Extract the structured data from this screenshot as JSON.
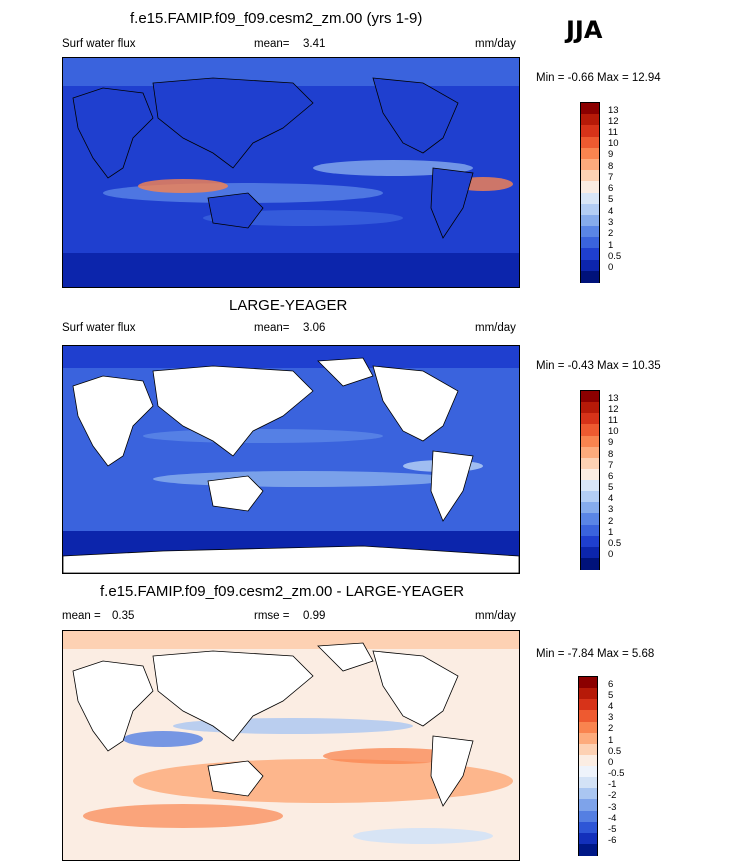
{
  "season": "JJA",
  "panels": [
    {
      "title": "f.e15.FAMIP.f09_f09.cesm2_zm.00 (yrs 1-9)",
      "left_label": "Surf water flux",
      "mean_text": "mean=",
      "mean_value": "3.41",
      "units": "mm/day",
      "minmax": "Min = -0.66 Max = 12.94",
      "levels": [
        "13",
        "12",
        "11",
        "10",
        "9",
        "8",
        "7",
        "6",
        "5",
        "4",
        "3",
        "2",
        "1",
        "0.5",
        "0"
      ],
      "colors": [
        "#8b0000",
        "#b61a08",
        "#d73319",
        "#ee5a30",
        "#f9844f",
        "#fdab7c",
        "#fdd1b3",
        "#fbede3",
        "#d9e6f7",
        "#b3cdf4",
        "#86abec",
        "#5a85e6",
        "#3a63dd",
        "#1f3fcf",
        "#0c25ac",
        "#00127a"
      ]
    },
    {
      "title": "LARGE-YEAGER",
      "left_label": "Surf water flux",
      "mean_text": "mean=",
      "mean_value": "3.06",
      "units": "mm/day",
      "minmax": "Min = -0.43 Max = 10.35",
      "levels": [
        "13",
        "12",
        "11",
        "10",
        "9",
        "8",
        "7",
        "6",
        "5",
        "4",
        "3",
        "2",
        "1",
        "0.5",
        "0"
      ],
      "colors": [
        "#8b0000",
        "#b61a08",
        "#d73319",
        "#ee5a30",
        "#f9844f",
        "#fdab7c",
        "#fdd1b3",
        "#fbede3",
        "#d9e6f7",
        "#b3cdf4",
        "#86abec",
        "#5a85e6",
        "#3a63dd",
        "#1f3fcf",
        "#0c25ac",
        "#00127a"
      ]
    },
    {
      "title": "f.e15.FAMIP.f09_f09.cesm2_zm.00 - LARGE-YEAGER",
      "left_label": "mean =",
      "left_value": "0.35",
      "mean_text": "rmse =",
      "mean_value": "0.99",
      "units": "mm/day",
      "minmax": "Min = -7.84 Max =  5.68",
      "levels": [
        "6",
        "5",
        "4",
        "3",
        "2",
        "1",
        "0.5",
        "0",
        "-0.5",
        "-1",
        "-2",
        "-3",
        "-4",
        "-5",
        "-6"
      ],
      "colors": [
        "#8b0000",
        "#b61a08",
        "#d73319",
        "#ee5a30",
        "#f9844f",
        "#fdab7c",
        "#fdd1b3",
        "#fbede3",
        "#eef3fb",
        "#d3e2f6",
        "#aac6f1",
        "#7ea3ea",
        "#557fe2",
        "#2e56d6",
        "#1330bb",
        "#001887"
      ]
    }
  ],
  "chart_data": [
    {
      "type": "heatmap",
      "title": "f.e15.FAMIP.f09_f09.cesm2_zm.00 (yrs 1-9)",
      "variable": "Surf water flux",
      "units": "mm/day",
      "mean": 3.41,
      "min": -0.66,
      "max": 12.94,
      "contour_levels": [
        0,
        0.5,
        1,
        2,
        3,
        4,
        5,
        6,
        7,
        8,
        9,
        10,
        11,
        12,
        13
      ]
    },
    {
      "type": "heatmap",
      "title": "LARGE-YEAGER",
      "variable": "Surf water flux",
      "units": "mm/day",
      "mean": 3.06,
      "min": -0.43,
      "max": 10.35,
      "contour_levels": [
        0,
        0.5,
        1,
        2,
        3,
        4,
        5,
        6,
        7,
        8,
        9,
        10,
        11,
        12,
        13
      ]
    },
    {
      "type": "heatmap",
      "title": "f.e15.FAMIP.f09_f09.cesm2_zm.00 - LARGE-YEAGER",
      "units": "mm/day",
      "mean": 0.35,
      "rmse": 0.99,
      "min": -7.84,
      "max": 5.68,
      "contour_levels": [
        -6,
        -5,
        -4,
        -3,
        -2,
        -1,
        -0.5,
        0,
        0.5,
        1,
        2,
        3,
        4,
        5,
        6
      ]
    }
  ]
}
